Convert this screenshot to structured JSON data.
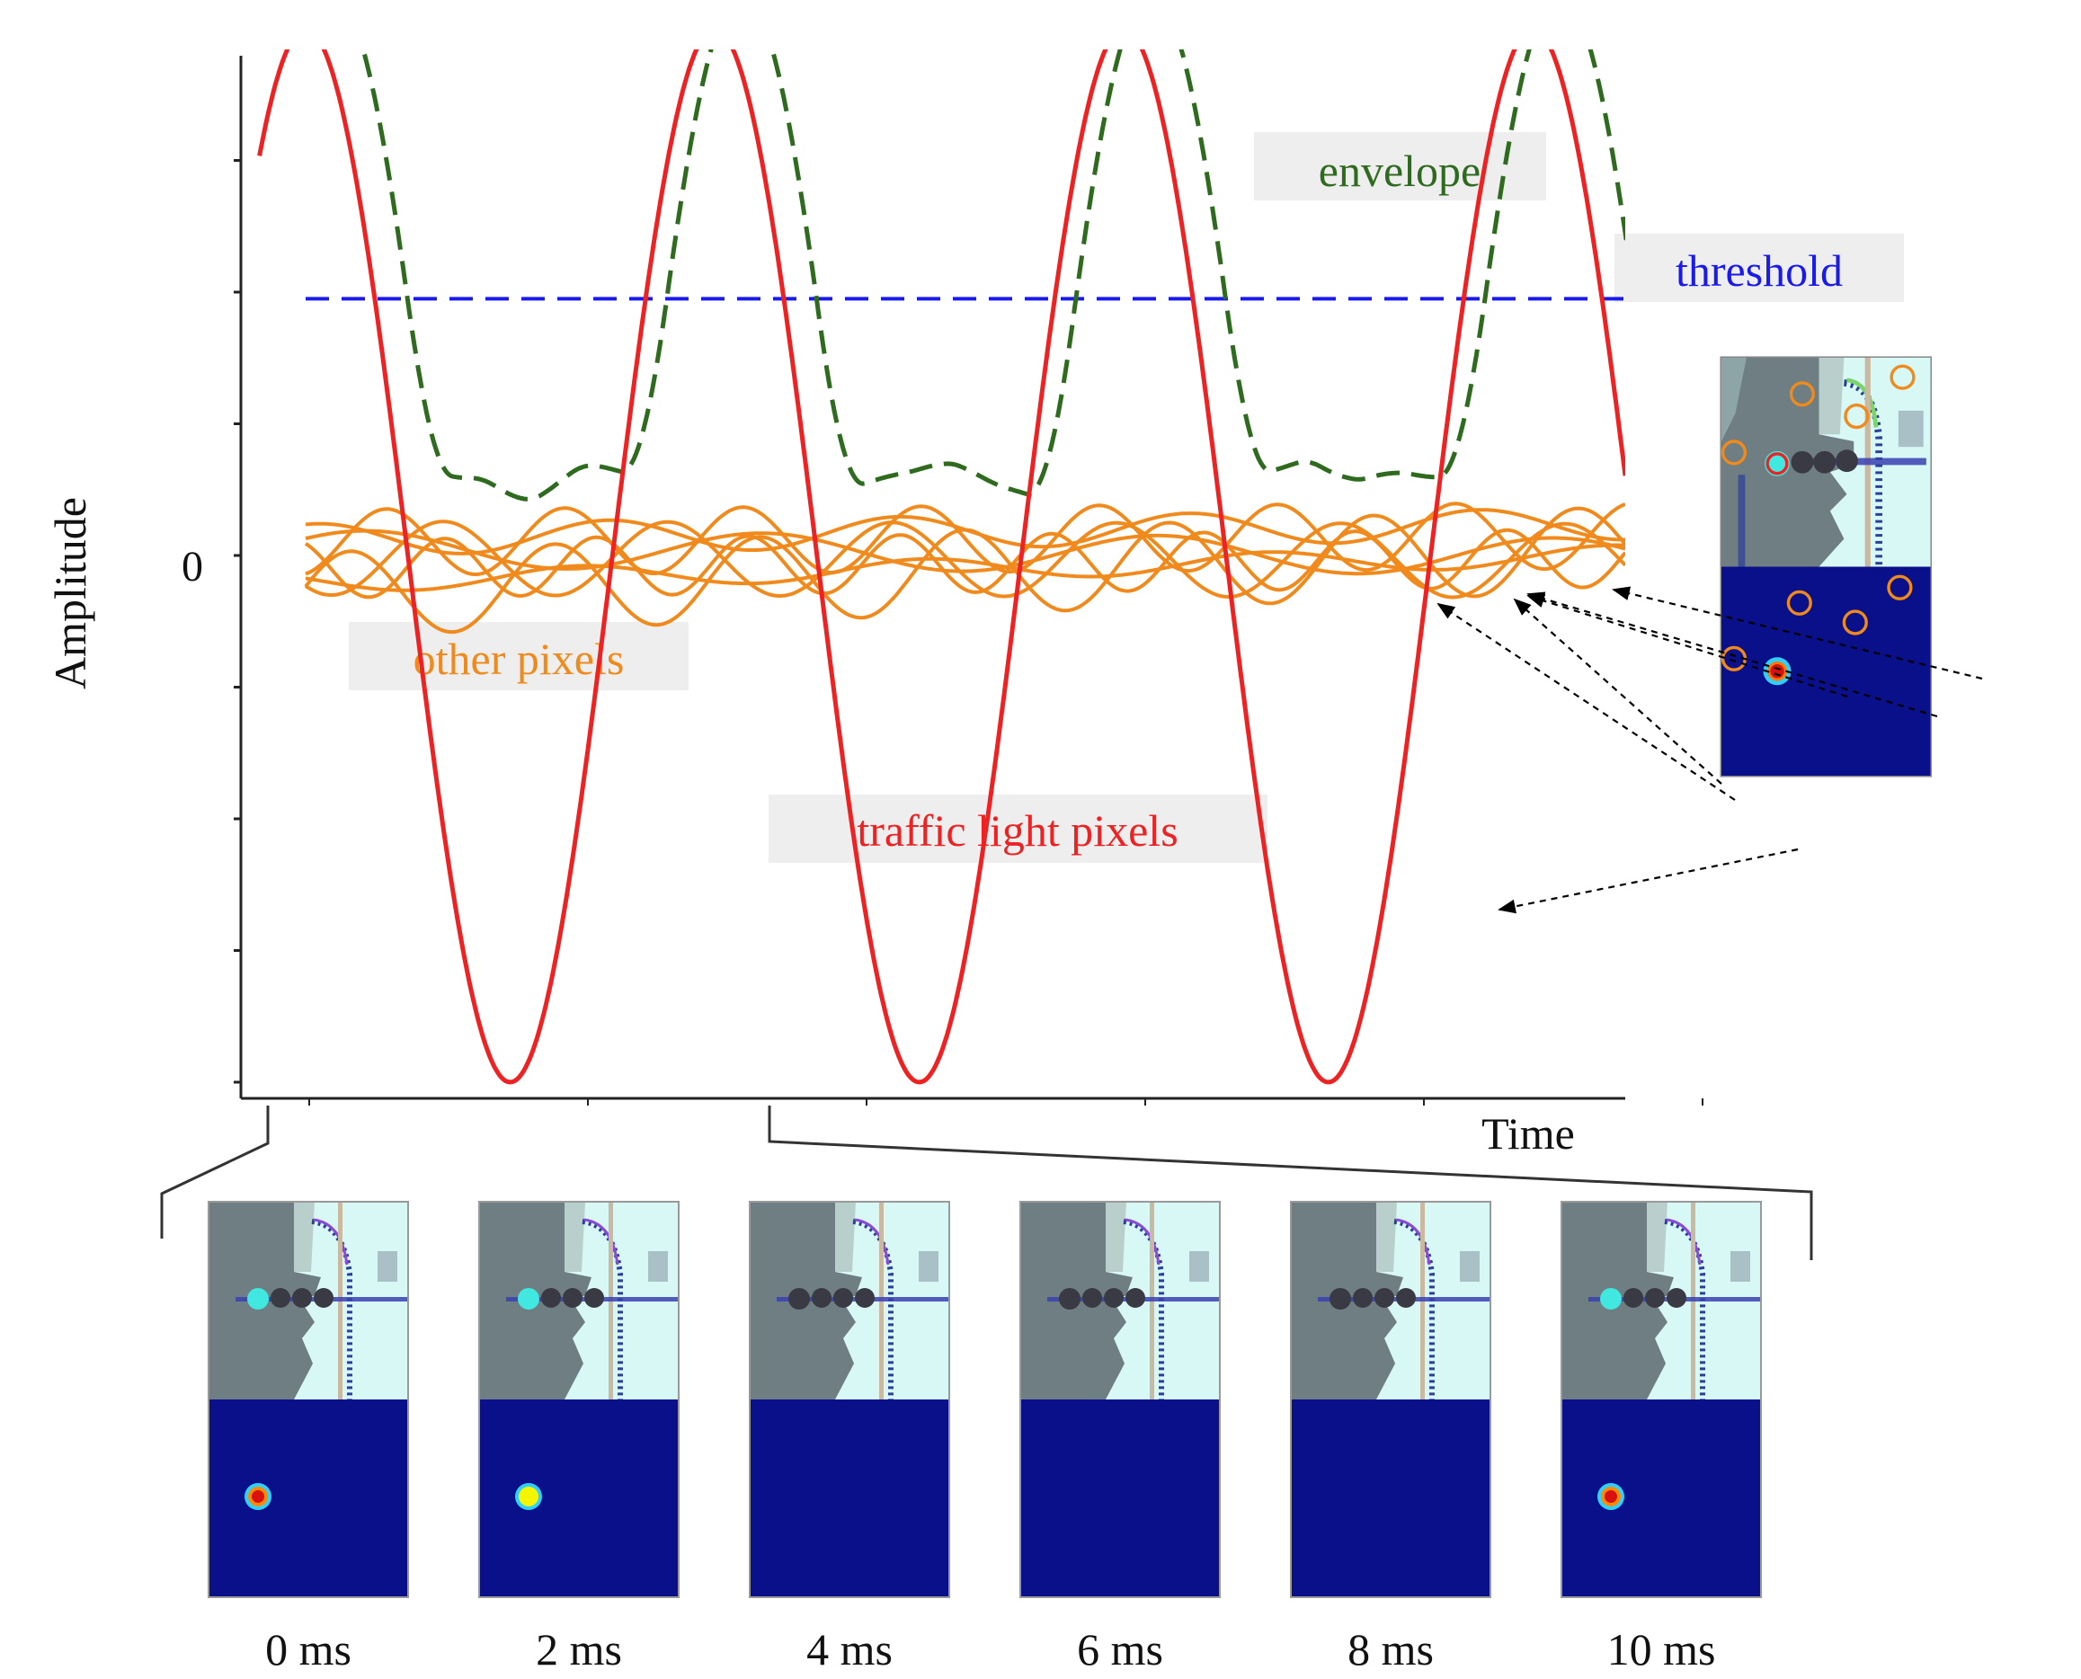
{
  "chart_data": {
    "type": "line",
    "xlabel": "Time",
    "ylabel": "Amplitude",
    "y_tick_label": "0",
    "xlim": [
      0,
      10
    ],
    "ylim": [
      -4,
      4
    ],
    "series": [
      {
        "name": "traffic light pixels",
        "color": "#ee2222",
        "style": "solid",
        "period": 3.1,
        "amplitude": 4,
        "phase": 0
      },
      {
        "name": "envelope",
        "color": "#2e6b1f",
        "style": "dashed"
      },
      {
        "name": "threshold",
        "color": "#1a1aee",
        "style": "dashed",
        "y": 1.95
      },
      {
        "name": "other pixels",
        "color": "#f08a1c",
        "style": "solid",
        "count": 7
      }
    ],
    "frames": [
      {
        "label": "0 ms",
        "hot": "red"
      },
      {
        "label": "2 ms",
        "hot": "yellow"
      },
      {
        "label": "4 ms",
        "hot": "none"
      },
      {
        "label": "6 ms",
        "hot": "none"
      },
      {
        "label": "8 ms",
        "hot": "none"
      },
      {
        "label": "10 ms",
        "hot": "red"
      }
    ]
  }
}
